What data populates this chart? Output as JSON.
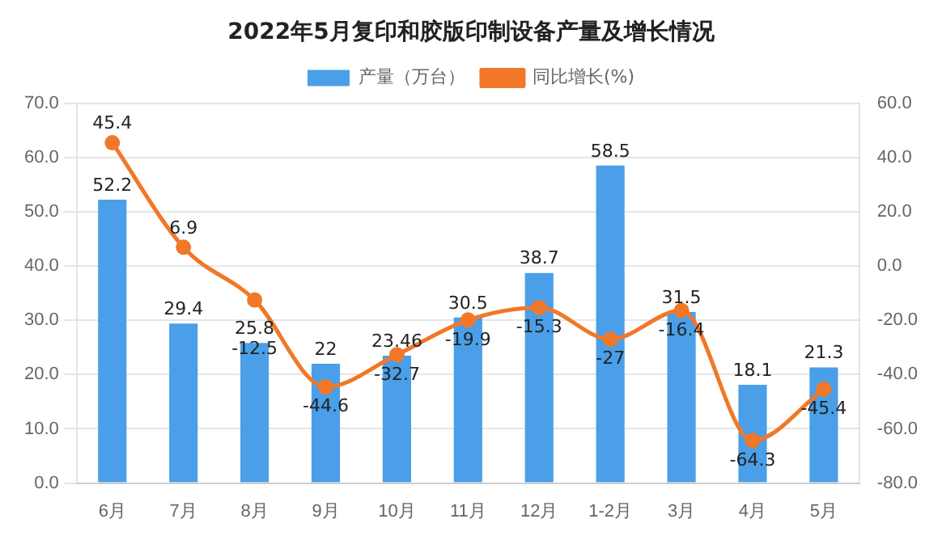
{
  "chart_data": {
    "type": "bar",
    "title": "2022年5月复印和胶版印制设备产量及增长情况",
    "categories": [
      "6月",
      "7月",
      "8月",
      "9月",
      "10月",
      "11月",
      "12月",
      "1-2月",
      "3月",
      "4月",
      "5月"
    ],
    "series": [
      {
        "name": "产量（万台）",
        "color": "#4a9fe8",
        "values": [
          52.2,
          29.4,
          25.8,
          22,
          23.46,
          30.5,
          38.7,
          58.5,
          31.5,
          18.1,
          21.3
        ]
      },
      {
        "name": "同比增长(%)",
        "type": "line",
        "axis": "y2",
        "color": "#f07828",
        "values": [
          45.4,
          6.9,
          -12.5,
          -44.6,
          -32.7,
          -19.9,
          -15.3,
          -27,
          -16.4,
          -64.3,
          -45.4
        ]
      }
    ],
    "ylim": [
      0,
      70
    ],
    "yticks": [
      {
        "value": 0,
        "label": "0.0"
      },
      {
        "value": 10,
        "label": "10.0"
      },
      {
        "value": 20,
        "label": "20.0"
      },
      {
        "value": 30,
        "label": "30.0"
      },
      {
        "value": 40,
        "label": "40.0"
      },
      {
        "value": 50,
        "label": "50.0"
      },
      {
        "value": 60,
        "label": "60.0"
      },
      {
        "value": 70,
        "label": "70.0"
      }
    ],
    "y2lim": [
      -80,
      60
    ],
    "y2ticks": [
      {
        "value": -80,
        "label": "-80.0"
      },
      {
        "value": -60,
        "label": "-60.0"
      },
      {
        "value": -40,
        "label": "-40.0"
      },
      {
        "value": -20,
        "label": "-20.0"
      },
      {
        "value": 0,
        "label": "0.0"
      },
      {
        "value": 20,
        "label": "20.0"
      },
      {
        "value": 40,
        "label": "40.0"
      },
      {
        "value": 60,
        "label": "60.0"
      }
    ],
    "grid": "y",
    "legend": "top",
    "marker": "circle",
    "data_labels": true
  }
}
